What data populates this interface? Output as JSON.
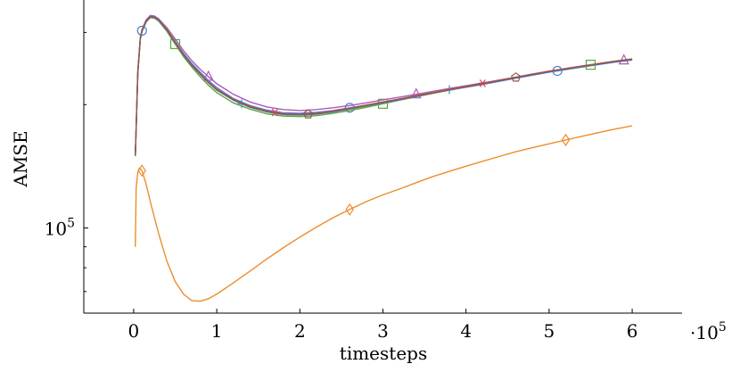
{
  "chart_data": {
    "type": "line",
    "xlabel": "timesteps",
    "ylabel": "AMSE",
    "x_multiplier_label": "·10",
    "x_multiplier_exponent": "5",
    "y_scale": "log",
    "xlim": [
      -0.6,
      6.6
    ],
    "ylim": [
      62000,
      360000
    ],
    "x_ticks": [
      0,
      1,
      2,
      3,
      4,
      5,
      6
    ],
    "x_tick_labels": [
      "0",
      "1",
      "2",
      "3",
      "4",
      "5",
      "6"
    ],
    "y_ticks": [
      100000
    ],
    "y_tick_labels": [
      "10",
      "5"
    ],
    "grid": false,
    "legend": "none",
    "series": [
      {
        "color": "#4a7fd0",
        "marker": "circle",
        "points": [
          [
            0.02,
            150000
          ],
          [
            0.05,
            240000
          ],
          [
            0.08,
            290000
          ],
          [
            0.1,
            303000
          ],
          [
            0.15,
            320000
          ],
          [
            0.2,
            328000
          ],
          [
            0.25,
            327000
          ],
          [
            0.3,
            322000
          ],
          [
            0.4,
            305000
          ],
          [
            0.5,
            285000
          ],
          [
            0.6,
            267000
          ],
          [
            0.7,
            252000
          ],
          [
            0.8,
            240000
          ],
          [
            0.9,
            229000
          ],
          [
            1.0,
            220000
          ],
          [
            1.2,
            207000
          ],
          [
            1.4,
            199000
          ],
          [
            1.6,
            194000
          ],
          [
            1.8,
            191000
          ],
          [
            2.0,
            190500
          ],
          [
            2.2,
            191500
          ],
          [
            2.4,
            193500
          ],
          [
            2.6,
            196500
          ],
          [
            2.8,
            199500
          ],
          [
            3.0,
            203000
          ],
          [
            3.2,
            206500
          ],
          [
            3.4,
            210000
          ],
          [
            3.6,
            213500
          ],
          [
            3.8,
            217000
          ],
          [
            4.0,
            220500
          ],
          [
            4.2,
            224000
          ],
          [
            4.4,
            228000
          ],
          [
            4.6,
            232000
          ],
          [
            4.8,
            236000
          ],
          [
            5.0,
            240000
          ],
          [
            5.2,
            243500
          ],
          [
            5.4,
            247000
          ],
          [
            5.6,
            250500
          ],
          [
            5.8,
            254000
          ],
          [
            6.0,
            257000
          ]
        ],
        "markers_x": [
          0.1,
          2.6,
          5.1
        ]
      },
      {
        "color": "#ec8d2c",
        "marker": "diamond",
        "points": [
          [
            0.02,
            90000
          ],
          [
            0.03,
            125000
          ],
          [
            0.05,
            137000
          ],
          [
            0.07,
            140000
          ],
          [
            0.1,
            138000
          ],
          [
            0.15,
            128000
          ],
          [
            0.2,
            116000
          ],
          [
            0.3,
            97000
          ],
          [
            0.4,
            83000
          ],
          [
            0.5,
            74000
          ],
          [
            0.6,
            69000
          ],
          [
            0.7,
            66500
          ],
          [
            0.8,
            66300
          ],
          [
            0.9,
            67200
          ],
          [
            1.0,
            69000
          ],
          [
            1.2,
            73500
          ],
          [
            1.4,
            78500
          ],
          [
            1.6,
            84000
          ],
          [
            1.8,
            89500
          ],
          [
            2.0,
            95000
          ],
          [
            2.2,
            100500
          ],
          [
            2.4,
            106000
          ],
          [
            2.6,
            111000
          ],
          [
            2.8,
            116000
          ],
          [
            3.0,
            120500
          ],
          [
            3.2,
            124500
          ],
          [
            3.4,
            129000
          ],
          [
            3.6,
            133500
          ],
          [
            3.8,
            137500
          ],
          [
            4.0,
            141500
          ],
          [
            4.2,
            145500
          ],
          [
            4.4,
            149500
          ],
          [
            4.6,
            153500
          ],
          [
            4.8,
            157000
          ],
          [
            5.0,
            160500
          ],
          [
            5.2,
            164000
          ],
          [
            5.4,
            167500
          ],
          [
            5.6,
            171000
          ],
          [
            5.8,
            174500
          ],
          [
            6.0,
            177500
          ]
        ],
        "markers_x": [
          0.1,
          2.6,
          5.2
        ]
      },
      {
        "color": "#5aa83e",
        "marker": "square",
        "points": [
          [
            0.02,
            150000
          ],
          [
            0.05,
            238000
          ],
          [
            0.08,
            288000
          ],
          [
            0.1,
            301000
          ],
          [
            0.15,
            318000
          ],
          [
            0.2,
            326000
          ],
          [
            0.25,
            325000
          ],
          [
            0.3,
            320000
          ],
          [
            0.4,
            302000
          ],
          [
            0.5,
            281000
          ],
          [
            0.6,
            262000
          ],
          [
            0.7,
            247000
          ],
          [
            0.8,
            234000
          ],
          [
            0.9,
            223000
          ],
          [
            1.0,
            214000
          ],
          [
            1.2,
            202000
          ],
          [
            1.4,
            195000
          ],
          [
            1.6,
            190000
          ],
          [
            1.8,
            187500
          ],
          [
            2.0,
            187000
          ],
          [
            2.2,
            188000
          ],
          [
            2.4,
            190500
          ],
          [
            2.6,
            193500
          ],
          [
            2.8,
            197000
          ],
          [
            3.0,
            201000
          ],
          [
            3.2,
            205000
          ],
          [
            3.4,
            209000
          ],
          [
            3.6,
            213000
          ],
          [
            3.8,
            217000
          ],
          [
            4.0,
            221000
          ],
          [
            4.2,
            225000
          ],
          [
            4.4,
            229000
          ],
          [
            4.6,
            233000
          ],
          [
            4.8,
            237000
          ],
          [
            5.0,
            241000
          ],
          [
            5.2,
            245000
          ],
          [
            5.4,
            248500
          ],
          [
            5.6,
            252000
          ],
          [
            5.8,
            255500
          ],
          [
            6.0,
            258500
          ]
        ],
        "markers_x": [
          0.5,
          3.0,
          5.5
        ]
      },
      {
        "color": "#a65bbd",
        "marker": "triangle",
        "points": [
          [
            0.02,
            150000
          ],
          [
            0.05,
            242000
          ],
          [
            0.08,
            292000
          ],
          [
            0.1,
            305000
          ],
          [
            0.15,
            322000
          ],
          [
            0.2,
            330000
          ],
          [
            0.25,
            329000
          ],
          [
            0.3,
            324000
          ],
          [
            0.4,
            308000
          ],
          [
            0.5,
            289000
          ],
          [
            0.6,
            271000
          ],
          [
            0.7,
            256000
          ],
          [
            0.8,
            244000
          ],
          [
            0.9,
            234000
          ],
          [
            1.0,
            225000
          ],
          [
            1.2,
            212000
          ],
          [
            1.4,
            203000
          ],
          [
            1.6,
            197500
          ],
          [
            1.8,
            194500
          ],
          [
            2.0,
            193500
          ],
          [
            2.2,
            194500
          ],
          [
            2.4,
            196500
          ],
          [
            2.6,
            199000
          ],
          [
            2.8,
            202000
          ],
          [
            3.0,
            205500
          ],
          [
            3.2,
            208500
          ],
          [
            3.4,
            212000
          ],
          [
            3.6,
            215500
          ],
          [
            3.8,
            219000
          ],
          [
            4.0,
            222500
          ],
          [
            4.2,
            226000
          ],
          [
            4.4,
            229500
          ],
          [
            4.6,
            233000
          ],
          [
            4.8,
            237000
          ],
          [
            5.0,
            241000
          ],
          [
            5.2,
            244500
          ],
          [
            5.4,
            248000
          ],
          [
            5.6,
            251500
          ],
          [
            5.8,
            255000
          ],
          [
            6.0,
            258000
          ]
        ],
        "markers_x": [
          0.9,
          3.4,
          5.9
        ]
      },
      {
        "color": "#3a8fc8",
        "marker": "plus",
        "points": [
          [
            0.02,
            150000
          ],
          [
            0.05,
            239000
          ],
          [
            0.08,
            289000
          ],
          [
            0.1,
            302000
          ],
          [
            0.15,
            319000
          ],
          [
            0.2,
            327000
          ],
          [
            0.25,
            326000
          ],
          [
            0.3,
            321000
          ],
          [
            0.4,
            304000
          ],
          [
            0.5,
            283000
          ],
          [
            0.6,
            264000
          ],
          [
            0.7,
            249000
          ],
          [
            0.8,
            237000
          ],
          [
            0.9,
            226000
          ],
          [
            1.0,
            217000
          ],
          [
            1.2,
            205000
          ],
          [
            1.4,
            197000
          ],
          [
            1.6,
            192000
          ],
          [
            1.8,
            189000
          ],
          [
            2.0,
            188500
          ],
          [
            2.2,
            189500
          ],
          [
            2.4,
            192000
          ],
          [
            2.6,
            195000
          ],
          [
            2.8,
            198500
          ],
          [
            3.0,
            202000
          ],
          [
            3.2,
            205500
          ],
          [
            3.4,
            209500
          ],
          [
            3.6,
            213500
          ],
          [
            3.8,
            217500
          ],
          [
            4.0,
            221000
          ],
          [
            4.2,
            225000
          ],
          [
            4.4,
            229000
          ],
          [
            4.6,
            233000
          ],
          [
            4.8,
            237000
          ],
          [
            5.0,
            241000
          ],
          [
            5.2,
            244500
          ],
          [
            5.4,
            248000
          ],
          [
            5.6,
            251500
          ],
          [
            5.8,
            255000
          ],
          [
            6.0,
            258000
          ]
        ],
        "markers_x": [
          1.3,
          3.8
        ]
      },
      {
        "color": "#e0455a",
        "marker": "star",
        "points": [
          [
            0.02,
            150000
          ],
          [
            0.05,
            240000
          ],
          [
            0.08,
            290000
          ],
          [
            0.1,
            303000
          ],
          [
            0.15,
            320000
          ],
          [
            0.2,
            328000
          ],
          [
            0.25,
            327000
          ],
          [
            0.3,
            322000
          ],
          [
            0.4,
            305000
          ],
          [
            0.5,
            284000
          ],
          [
            0.6,
            265000
          ],
          [
            0.7,
            250000
          ],
          [
            0.8,
            238000
          ],
          [
            0.9,
            227000
          ],
          [
            1.0,
            218000
          ],
          [
            1.2,
            206000
          ],
          [
            1.4,
            198000
          ],
          [
            1.6,
            193000
          ],
          [
            1.8,
            190000
          ],
          [
            2.0,
            189500
          ],
          [
            2.2,
            190500
          ],
          [
            2.4,
            193000
          ],
          [
            2.6,
            196000
          ],
          [
            2.8,
            199500
          ],
          [
            3.0,
            203000
          ],
          [
            3.2,
            206500
          ],
          [
            3.4,
            210500
          ],
          [
            3.6,
            214000
          ],
          [
            3.8,
            218000
          ],
          [
            4.0,
            221500
          ],
          [
            4.2,
            225500
          ],
          [
            4.4,
            229500
          ],
          [
            4.6,
            233500
          ],
          [
            4.8,
            237500
          ],
          [
            5.0,
            241500
          ],
          [
            5.2,
            245000
          ],
          [
            5.4,
            248500
          ],
          [
            5.6,
            252000
          ],
          [
            5.8,
            255500
          ],
          [
            6.0,
            258500
          ]
        ],
        "markers_x": [
          1.7,
          4.2
        ]
      },
      {
        "color": "#8a5a4a",
        "marker": "pentagon",
        "points": [
          [
            0.02,
            150000
          ],
          [
            0.05,
            240000
          ],
          [
            0.08,
            290000
          ],
          [
            0.1,
            303000
          ],
          [
            0.15,
            320000
          ],
          [
            0.2,
            328000
          ],
          [
            0.25,
            327000
          ],
          [
            0.3,
            322000
          ],
          [
            0.4,
            304500
          ],
          [
            0.5,
            283500
          ],
          [
            0.6,
            264500
          ],
          [
            0.7,
            249500
          ],
          [
            0.8,
            237500
          ],
          [
            0.9,
            226500
          ],
          [
            1.0,
            217500
          ],
          [
            1.2,
            205500
          ],
          [
            1.4,
            197500
          ],
          [
            1.6,
            192500
          ],
          [
            1.8,
            189500
          ],
          [
            2.0,
            189000
          ],
          [
            2.2,
            190000
          ],
          [
            2.4,
            192500
          ],
          [
            2.6,
            195500
          ],
          [
            2.8,
            199000
          ],
          [
            3.0,
            202500
          ],
          [
            3.2,
            206000
          ],
          [
            3.4,
            210000
          ],
          [
            3.6,
            213500
          ],
          [
            3.8,
            217500
          ],
          [
            4.0,
            221000
          ],
          [
            4.2,
            225000
          ],
          [
            4.4,
            229000
          ],
          [
            4.6,
            233000
          ],
          [
            4.8,
            237000
          ],
          [
            5.0,
            241000
          ],
          [
            5.2,
            244500
          ],
          [
            5.4,
            248000
          ],
          [
            5.6,
            251500
          ],
          [
            5.8,
            255000
          ],
          [
            6.0,
            258000
          ]
        ],
        "markers_x": [
          2.1,
          4.6
        ]
      }
    ]
  }
}
